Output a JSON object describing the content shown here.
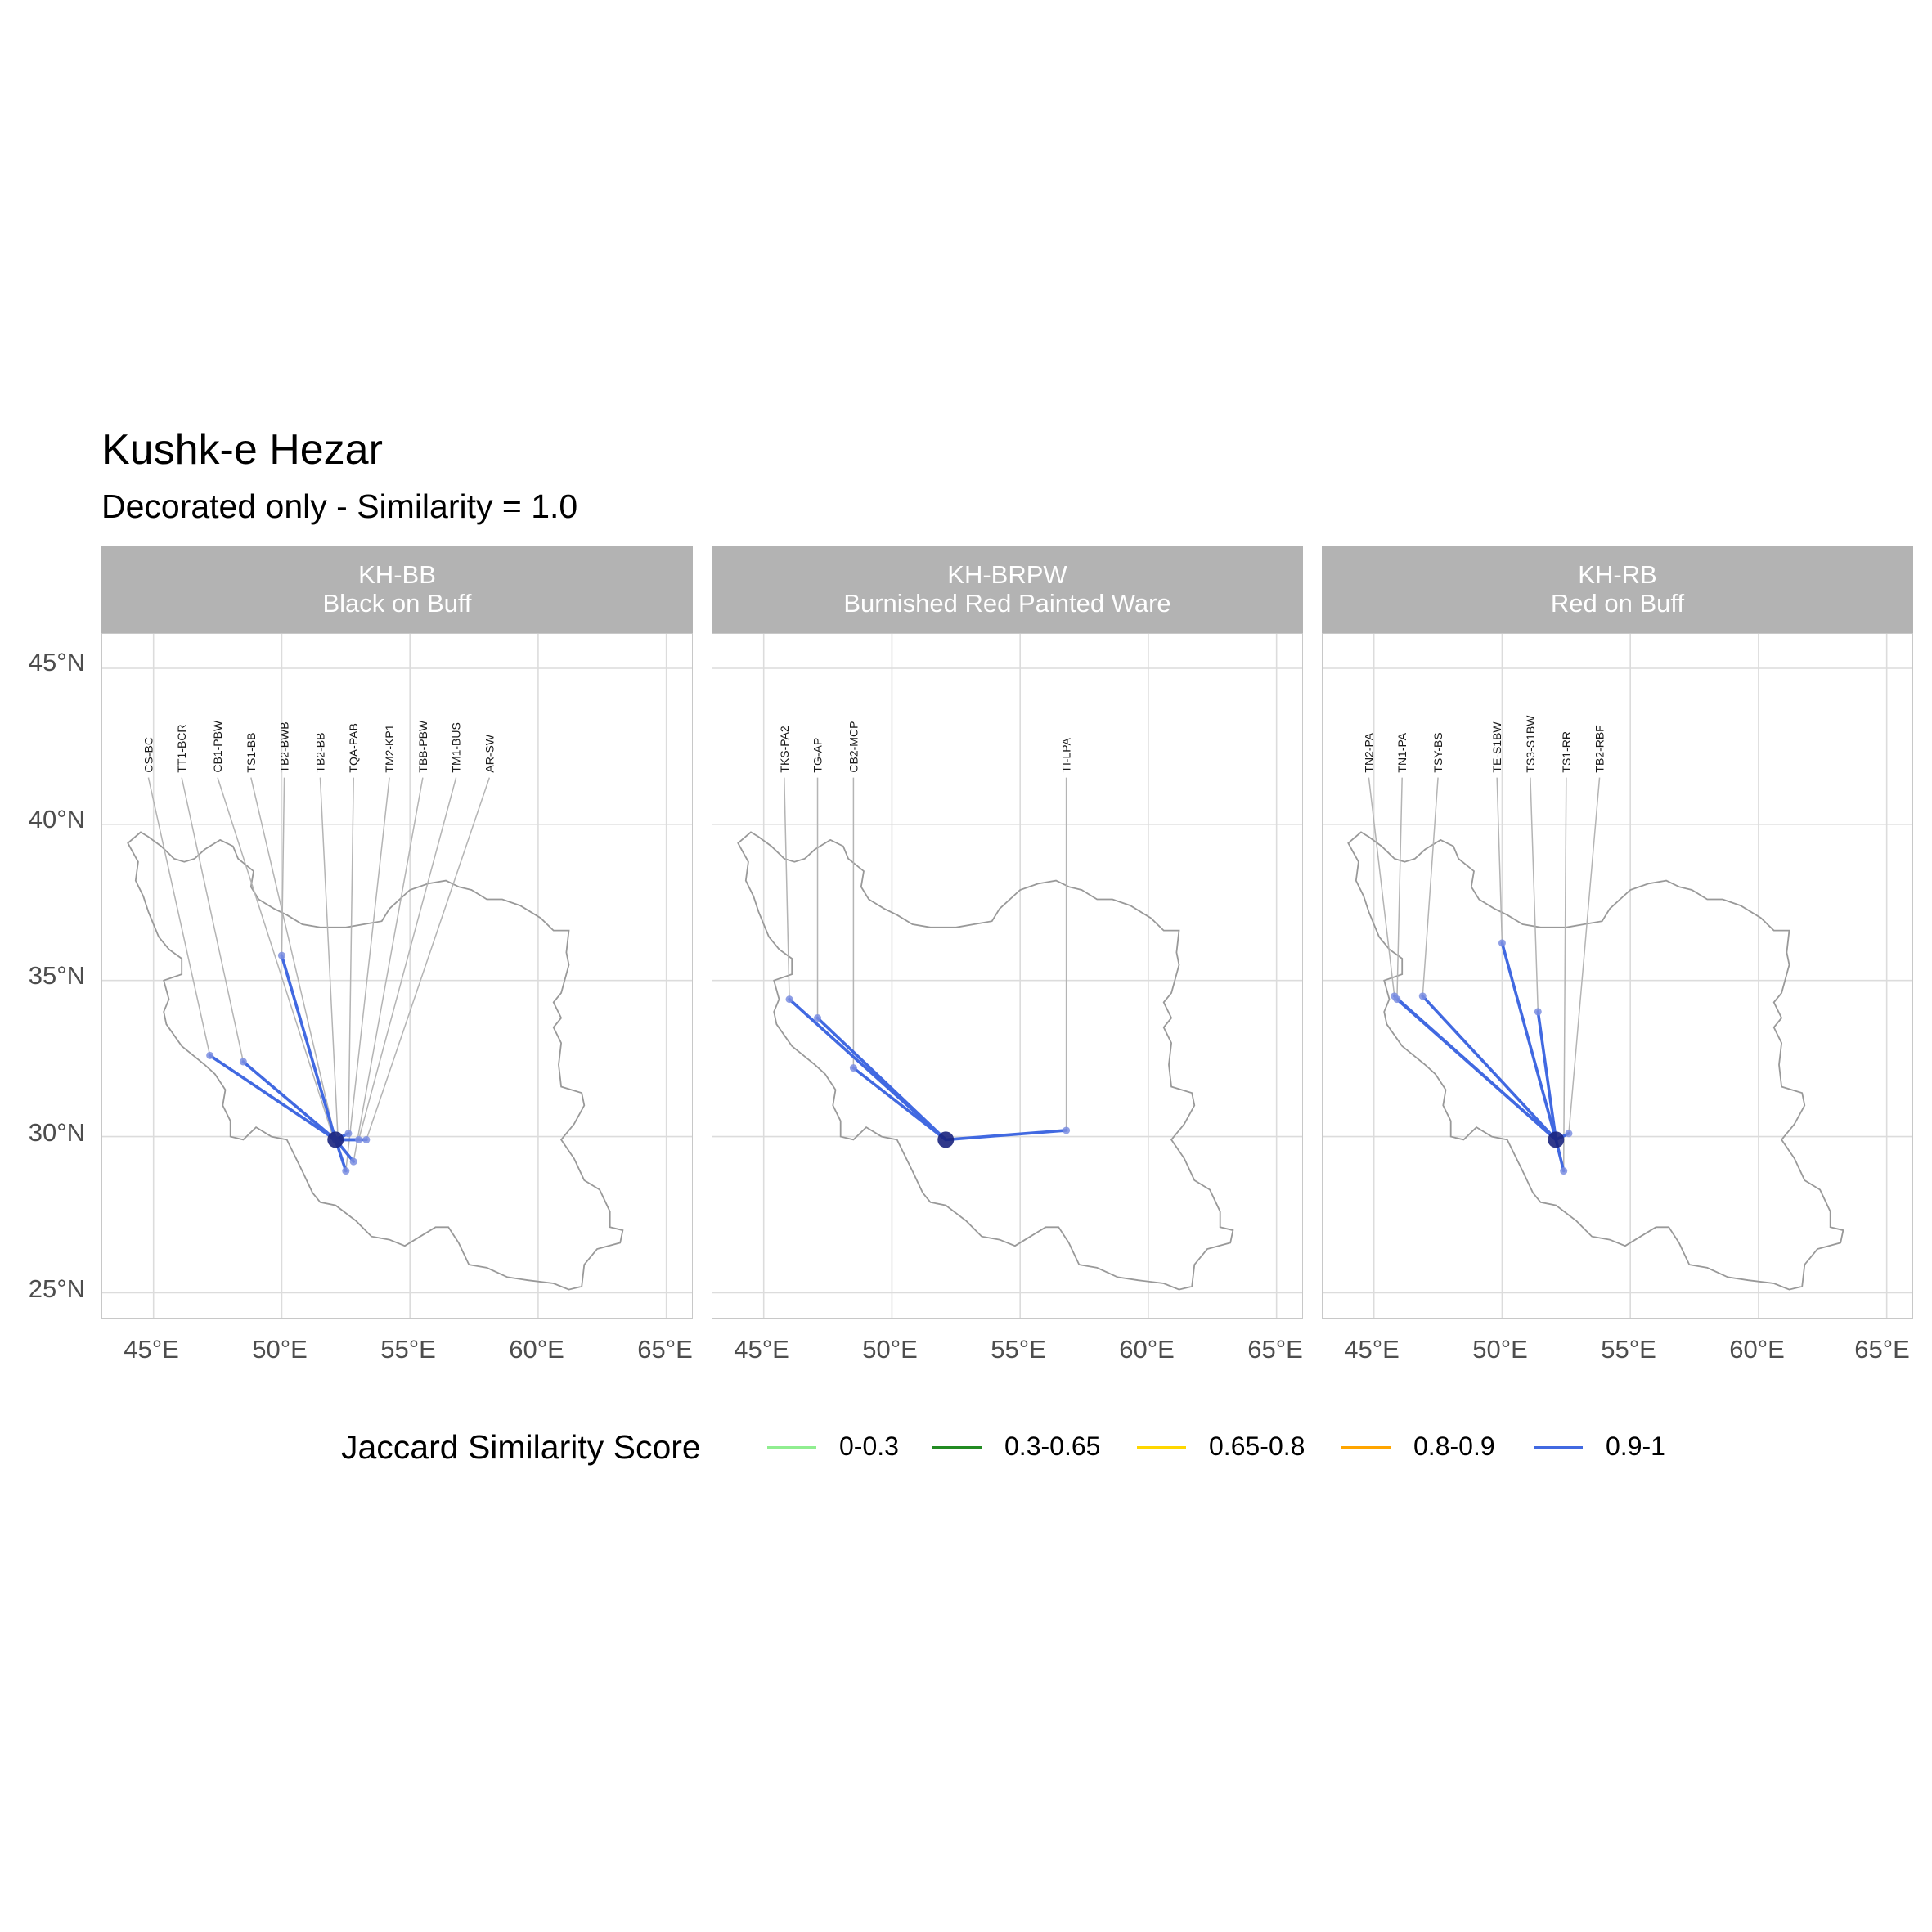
{
  "title": "Kushk-e Hezar",
  "subtitle": "Decorated only - Similarity = 1.0",
  "axes": {
    "lon_ticks": [
      "45°E",
      "50°E",
      "55°E",
      "60°E",
      "65°E"
    ],
    "lat_ticks": [
      "45°N",
      "40°N",
      "35°N",
      "30°N",
      "25°N"
    ]
  },
  "legend": {
    "title": "Jaccard Similarity Score",
    "items": [
      {
        "label": "0-0.3",
        "color": "#90ee90"
      },
      {
        "label": "0.3-0.65",
        "color": "#228b22"
      },
      {
        "label": "0.65-0.8",
        "color": "#ffd700"
      },
      {
        "label": "0.8-0.9",
        "color": "#ffa500"
      },
      {
        "label": "0.9-1",
        "color": "#4169e1"
      }
    ]
  },
  "chart_data": {
    "type": "map",
    "xlim": [
      43,
      66
    ],
    "ylim": [
      24.2,
      46.1
    ],
    "grid": true,
    "legend_position": "bottom",
    "line_color": "#4169e1",
    "source_color": "#1a237e",
    "origin": {
      "name": "Kushk-e Hezar",
      "lon": 52.1,
      "lat": 29.9
    },
    "panels": [
      {
        "code": "KH-BB",
        "name": "Black on Buff",
        "sites": [
          {
            "label": "CS-BC",
            "lon": 47.2,
            "lat": 32.6,
            "label_lon": 44.8
          },
          {
            "label": "TT1-BCR",
            "lon": 48.5,
            "lat": 32.4,
            "label_lon": 46.1
          },
          {
            "label": "CB1-PBW",
            "lon": 52.0,
            "lat": 30.0,
            "label_lon": 47.5
          },
          {
            "label": "TS1-BB",
            "lon": 52.1,
            "lat": 29.9,
            "label_lon": 48.8
          },
          {
            "label": "TB2-BWB",
            "lon": 50.0,
            "lat": 35.8,
            "label_lon": 50.1
          },
          {
            "label": "TB2-BB",
            "lon": 52.2,
            "lat": 29.8,
            "label_lon": 51.5
          },
          {
            "label": "TQA-PAB",
            "lon": 52.6,
            "lat": 30.1,
            "label_lon": 52.8
          },
          {
            "label": "TM2-KP1",
            "lon": 52.5,
            "lat": 28.9,
            "label_lon": 54.2
          },
          {
            "label": "TBB-PBW",
            "lon": 52.8,
            "lat": 29.2,
            "label_lon": 55.5
          },
          {
            "label": "TM1-BUS",
            "lon": 53.0,
            "lat": 29.9,
            "label_lon": 56.8
          },
          {
            "label": "AR-SW",
            "lon": 53.3,
            "lat": 29.9,
            "label_lon": 58.1
          }
        ]
      },
      {
        "code": "KH-BRPW",
        "name": "Burnished Red Painted Ware",
        "sites": [
          {
            "label": "TKS-PA2",
            "lon": 46.0,
            "lat": 34.4,
            "label_lon": 45.8
          },
          {
            "label": "TG-AP",
            "lon": 47.1,
            "lat": 33.8,
            "label_lon": 47.1
          },
          {
            "label": "CB2-MCP",
            "lon": 48.5,
            "lat": 32.2,
            "label_lon": 48.5
          },
          {
            "label": "TI-LPA",
            "lon": 56.8,
            "lat": 30.2,
            "label_lon": 56.8
          }
        ]
      },
      {
        "code": "KH-RB",
        "name": "Red on Buff",
        "sites": [
          {
            "label": "TN2-PA",
            "lon": 45.8,
            "lat": 34.5,
            "label_lon": 44.8
          },
          {
            "label": "TN1-PA",
            "lon": 45.9,
            "lat": 34.4,
            "label_lon": 46.1
          },
          {
            "label": "TSY-BS",
            "lon": 46.9,
            "lat": 34.5,
            "label_lon": 47.5
          },
          {
            "label": "TE-S1BW",
            "lon": 50.0,
            "lat": 36.2,
            "label_lon": 49.8
          },
          {
            "label": "TS3-S1BW",
            "lon": 51.4,
            "lat": 34.0,
            "label_lon": 51.1
          },
          {
            "label": "TS1-RR",
            "lon": 52.4,
            "lat": 28.9,
            "label_lon": 52.5
          },
          {
            "label": "TB2-RBF",
            "lon": 52.6,
            "lat": 30.1,
            "label_lon": 53.8
          }
        ]
      }
    ]
  }
}
